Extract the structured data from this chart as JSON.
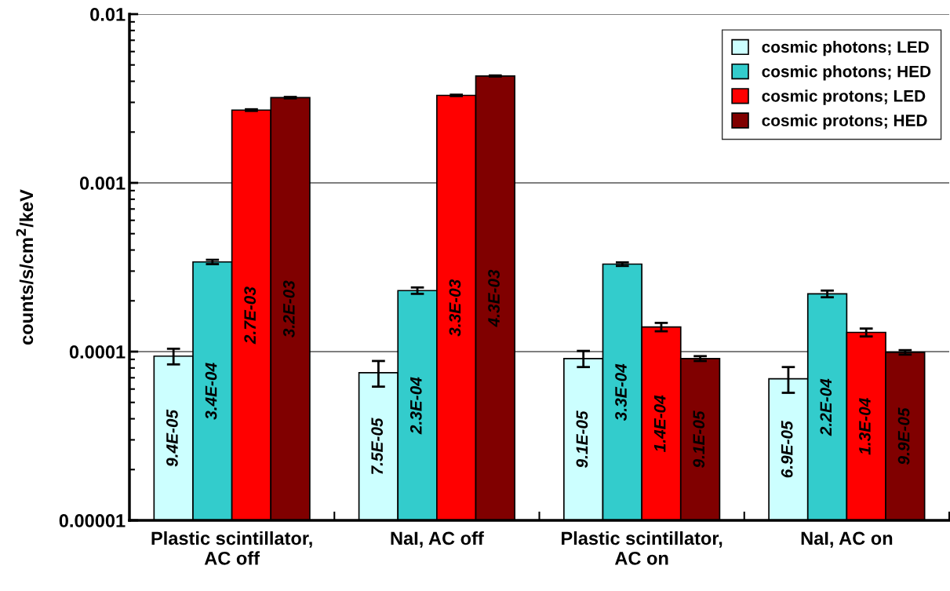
{
  "chart_data": {
    "type": "bar",
    "ylabel": "counts/s/cm$^{2}$/keV",
    "categories": [
      "Plastic scintillator,\nAC off",
      "NaI, AC off",
      "Plastic scintillator,\nAC on",
      "NaI, AC on"
    ],
    "log": "y",
    "ylim": [
      1e-05,
      0.01
    ],
    "yticks": [
      {
        "value": 1e-05,
        "label": "0.00001"
      },
      0.0001,
      0.001,
      0.01
    ],
    "grid": "y",
    "legend": "top right",
    "series": [
      {
        "name": "cosmic photons; LED",
        "color": "#ccffff",
        "values": [
          9.4e-05,
          7.5e-05,
          9.1e-05,
          6.9e-05
        ],
        "errors": [
          1e-05,
          1.3e-05,
          1e-05,
          1.2e-05
        ],
        "value_labels": [
          "9.4E-05",
          "7.5E-05",
          "9.1E-05",
          "6.9E-05"
        ]
      },
      {
        "name": "cosmic photons; HED",
        "color": "#33cccc",
        "values": [
          0.00034,
          0.00023,
          0.00033,
          0.00022
        ],
        "errors": [
          1e-05,
          1e-05,
          8e-06,
          1e-05
        ],
        "value_labels": [
          "3.4E-04",
          "2.3E-04",
          "3.3E-04",
          "2.2E-04"
        ]
      },
      {
        "name": "cosmic protons; LED",
        "color": "#ff0000",
        "values": [
          0.0027,
          0.0033,
          0.00014,
          0.00013
        ],
        "errors": [
          3e-05,
          3e-05,
          8e-06,
          7e-06
        ],
        "value_labels": [
          "2.7E-03",
          "3.3E-03",
          "1.4E-04",
          "1.3E-04"
        ]
      },
      {
        "name": "cosmic protons; HED",
        "color": "#800000",
        "values": [
          0.0032,
          0.0043,
          9.1e-05,
          9.9e-05
        ],
        "errors": [
          3e-05,
          3e-05,
          3e-06,
          3e-06
        ],
        "value_labels": [
          "3.2E-03",
          "4.3E-03",
          "9.1E-05",
          "9.9E-05"
        ]
      }
    ]
  }
}
